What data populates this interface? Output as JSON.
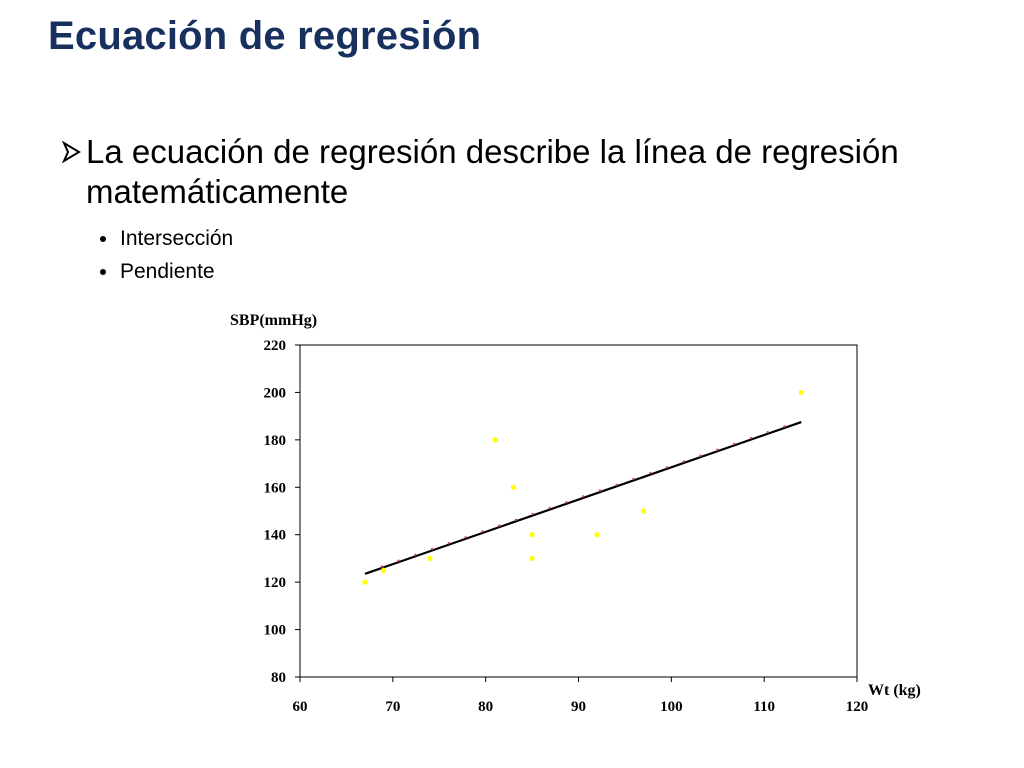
{
  "slide": {
    "title": "Ecuación de regresión",
    "bullet": "La ecuación de regresión describe la línea de regresión matemáticamente",
    "sub_bullets": [
      "Intersección",
      "Pendiente"
    ]
  },
  "colors": {
    "title": "#17305e",
    "points": "#ffff00",
    "line": "#000000",
    "line_dots": "#c0504d"
  },
  "chart_data": {
    "type": "scatter",
    "xlabel": "Wt (kg)",
    "ylabel": "SBP(mmHg)",
    "xlim": [
      60,
      120
    ],
    "ylim": [
      80,
      220
    ],
    "x_ticks": [
      60,
      70,
      80,
      90,
      100,
      110,
      120
    ],
    "y_ticks": [
      80,
      100,
      120,
      140,
      160,
      180,
      200,
      220
    ],
    "grid": false,
    "points": [
      {
        "x": 67,
        "y": 120
      },
      {
        "x": 69,
        "y": 125
      },
      {
        "x": 74,
        "y": 130
      },
      {
        "x": 81,
        "y": 180
      },
      {
        "x": 83,
        "y": 160
      },
      {
        "x": 85,
        "y": 140
      },
      {
        "x": 85,
        "y": 130
      },
      {
        "x": 92,
        "y": 140
      },
      {
        "x": 97,
        "y": 150
      },
      {
        "x": 114,
        "y": 200
      }
    ],
    "regression_line": {
      "x": [
        67,
        114
      ],
      "y": [
        123.5,
        187.5
      ]
    }
  }
}
